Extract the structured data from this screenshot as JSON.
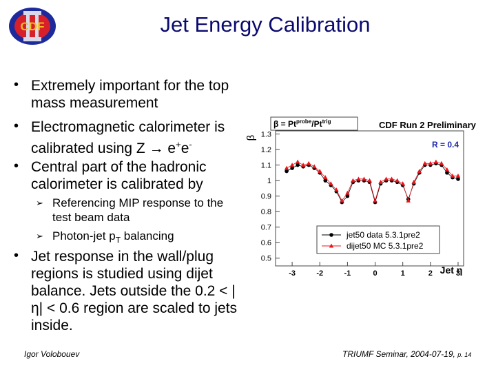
{
  "header": {
    "title": "Jet Energy Calibration"
  },
  "bullets": [
    {
      "text": "Extremely important for the top mass measurement"
    },
    {
      "text": "Electromagnetic calorimeter is calibrated using Z → e",
      "sup1": "+",
      "mid": "e",
      "sup2": "-"
    },
    {
      "text": "Central part of the hadronic calorimeter is calibrated by",
      "subitems": [
        {
          "text": "Referencing MIP response to the test beam data"
        },
        {
          "text": "Photon-jet p",
          "sub": "T",
          "tail": " balancing"
        }
      ]
    },
    {
      "text": "Jet response in the wall/plug regions is studied using dijet balance. Jets outside the 0.2 < |η| < 0.6 region are scaled to jets inside."
    }
  ],
  "footer": {
    "author": "Igor Volobouev",
    "event": "TRIUMF Seminar, 2004-07-19,",
    "page": "p. 14"
  },
  "chart_data": {
    "type": "scatter",
    "formula": {
      "lhs": "β = Pt",
      "sup1": "probe",
      "mid": "/Pt",
      "sup2": "trig"
    },
    "title": "CDF Run 2 Preliminary",
    "annotation": "R = 0.4",
    "y_label": "β",
    "x_label": "Jet η",
    "xlim": [
      -3.6,
      3.2
    ],
    "ylim": [
      0.45,
      1.32
    ],
    "xticks": [
      -3,
      -2,
      -1,
      0,
      1,
      2,
      3
    ],
    "yticks": [
      0.5,
      0.6,
      0.7,
      0.8,
      0.9,
      1,
      1.1,
      1.2,
      1.3
    ],
    "x": [
      -3.2,
      -3.0,
      -2.8,
      -2.6,
      -2.4,
      -2.2,
      -2.0,
      -1.8,
      -1.6,
      -1.4,
      -1.2,
      -1.0,
      -0.8,
      -0.6,
      -0.4,
      -0.2,
      0,
      0.2,
      0.4,
      0.6,
      0.8,
      1.0,
      1.2,
      1.4,
      1.6,
      1.8,
      2.0,
      2.2,
      2.4,
      2.6,
      2.8,
      3.0
    ],
    "series": [
      {
        "name": "jet50 data 5.3.1pre2",
        "color": "#000000",
        "marker": "circle",
        "values": [
          1.06,
          1.08,
          1.1,
          1.09,
          1.1,
          1.08,
          1.05,
          1.0,
          0.97,
          0.93,
          0.86,
          0.9,
          0.99,
          1.0,
          1.0,
          0.99,
          0.86,
          0.98,
          1.0,
          1.0,
          0.99,
          0.97,
          0.88,
          0.98,
          1.05,
          1.1,
          1.1,
          1.11,
          1.1,
          1.05,
          1.02,
          1.01
        ]
      },
      {
        "name": "dijet50 MC 5.3.1pre2",
        "color": "#e8141c",
        "marker": "triangle",
        "values": [
          1.08,
          1.1,
          1.12,
          1.1,
          1.11,
          1.09,
          1.06,
          1.02,
          0.98,
          0.94,
          0.87,
          0.92,
          1.0,
          1.01,
          1.01,
          1.0,
          0.87,
          0.99,
          1.01,
          1.01,
          1.0,
          0.98,
          0.87,
          0.99,
          1.06,
          1.11,
          1.11,
          1.12,
          1.11,
          1.07,
          1.03,
          1.03
        ]
      }
    ]
  }
}
